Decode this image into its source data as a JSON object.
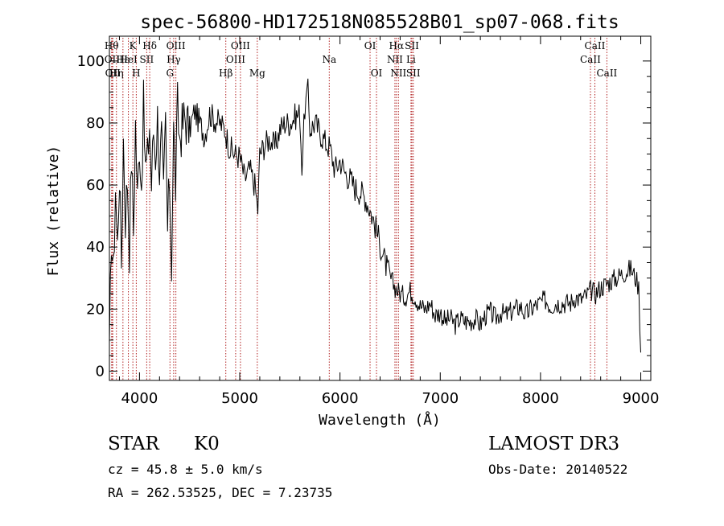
{
  "chart_data": {
    "type": "line",
    "title": "spec-56800-HD172518N085528B01_sp07-068.fits",
    "xlabel": "Wavelength (Å)",
    "ylabel": "Flux (relative)",
    "xlim": [
      3700,
      9100
    ],
    "ylim": [
      -3,
      108
    ],
    "xticks": [
      4000,
      5000,
      6000,
      7000,
      8000,
      9000
    ],
    "yticks": [
      0,
      20,
      40,
      60,
      80,
      100
    ],
    "grid": false,
    "line_color": "#000000",
    "marker_color": "#b22222",
    "series": [
      {
        "x": [
          3700,
          3720,
          3740,
          3760,
          3780,
          3800,
          3820,
          3840,
          3860,
          3880,
          3900,
          3920,
          3940,
          3960,
          3980,
          4000,
          4020,
          4040,
          4060,
          4080,
          4100,
          4120,
          4140,
          4160,
          4180,
          4200,
          4220,
          4240,
          4260,
          4280,
          4300,
          4320,
          4340,
          4360,
          4380,
          4400,
          4450,
          4500,
          4550,
          4600,
          4650,
          4700,
          4750,
          4800,
          4850,
          4900,
          4950,
          5000,
          5050,
          5100,
          5150,
          5180,
          5200,
          5250,
          5300,
          5350,
          5400,
          5450,
          5500,
          5550,
          5600,
          5620,
          5650,
          5680,
          5700,
          5750,
          5800,
          5850,
          5900,
          5950,
          6000,
          6050,
          6100,
          6150,
          6200,
          6250,
          6300,
          6350,
          6400,
          6450,
          6500,
          6550,
          6600,
          6650,
          6700,
          6750,
          6800,
          6850,
          6900,
          6950,
          7000,
          7050,
          7100,
          7150,
          7200,
          7250,
          7300,
          7350,
          7400,
          7450,
          7500,
          7550,
          7600,
          7650,
          7700,
          7750,
          7800,
          7850,
          7900,
          7950,
          8000,
          8050,
          8100,
          8150,
          8200,
          8250,
          8300,
          8350,
          8400,
          8450,
          8500,
          8550,
          8600,
          8650,
          8700,
          8750,
          8800,
          8850,
          8900,
          8950,
          8980,
          9000
        ],
        "y": [
          2,
          45,
          30,
          60,
          40,
          65,
          35,
          75,
          50,
          62,
          40,
          70,
          45,
          80,
          55,
          75,
          60,
          85,
          65,
          68,
          80,
          60,
          78,
          70,
          82,
          65,
          75,
          55,
          80,
          45,
          62,
          35,
          78,
          60,
          85,
          75,
          82,
          78,
          84,
          80,
          76,
          83,
          81,
          80,
          78,
          72,
          70,
          69,
          62,
          65,
          60,
          52,
          70,
          73,
          75,
          72,
          78,
          80,
          80,
          82,
          83,
          66,
          85,
          90,
          78,
          80,
          77,
          74,
          72,
          65,
          68,
          64,
          62,
          59,
          58,
          56,
          52,
          47,
          41,
          35,
          30,
          27,
          25,
          24,
          26,
          24,
          21,
          20,
          22,
          18,
          19,
          16,
          17,
          15,
          17,
          16,
          16,
          17,
          15,
          18,
          19,
          17,
          19,
          18,
          19,
          20,
          21,
          18,
          20,
          21,
          22,
          23,
          21,
          22,
          22,
          22,
          22,
          24,
          23,
          24,
          26,
          25,
          27,
          28,
          29,
          30,
          31,
          32,
          33,
          30,
          27,
          6
        ]
      }
    ],
    "line_markers": [
      {
        "w": 3722,
        "label": "Hθ",
        "row": 0,
        "marks": [
          3722
        ]
      },
      {
        "w": 3727,
        "label": "OII",
        "row": 1,
        "marks": [
          3727
        ]
      },
      {
        "w": 3734,
        "label": "OII",
        "row": 2,
        "marks": [
          3734
        ]
      },
      {
        "w": 3770,
        "label": "Hη",
        "row": 2,
        "marks": [
          3770
        ]
      },
      {
        "w": 3835,
        "label": "Hε",
        "row": 1,
        "marks": [
          3835
        ]
      },
      {
        "w": 3889,
        "label": "HeI",
        "row": 1,
        "marks": [
          3889
        ]
      },
      {
        "w": 3934,
        "label": "K",
        "row": 0,
        "marks": [
          3934
        ]
      },
      {
        "w": 3968,
        "label": "H",
        "row": 2,
        "marks": [
          3968
        ]
      },
      {
        "w": 4072,
        "label": "SII",
        "row": 1,
        "marks": [
          4072
        ]
      },
      {
        "w": 4102,
        "label": "Hδ",
        "row": 0,
        "marks": [
          4102
        ]
      },
      {
        "w": 4304,
        "label": "G",
        "row": 2,
        "marks": [
          4304
        ]
      },
      {
        "w": 4341,
        "label": "Hγ",
        "row": 1,
        "marks": [
          4341
        ]
      },
      {
        "w": 4363,
        "label": "OIII",
        "row": 0,
        "marks": [
          4363
        ]
      },
      {
        "w": 4861,
        "label": "Hβ",
        "row": 2,
        "marks": [
          4861
        ]
      },
      {
        "w": 4959,
        "label": "OIII",
        "row": 1,
        "marks": [
          4959
        ]
      },
      {
        "w": 5007,
        "label": "OIII",
        "row": 0,
        "marks": [
          5007
        ]
      },
      {
        "w": 5175,
        "label": "Mg",
        "row": 2,
        "marks": [
          5175
        ]
      },
      {
        "w": 5893,
        "label": "Na",
        "row": 1,
        "marks": [
          5893
        ]
      },
      {
        "w": 6300,
        "label": "OI",
        "row": 0,
        "marks": [
          6300
        ]
      },
      {
        "w": 6364,
        "label": "OI",
        "row": 2,
        "marks": [
          6364
        ]
      },
      {
        "w": 6548,
        "label": "NII",
        "row": 1,
        "marks": [
          6548
        ]
      },
      {
        "w": 6563,
        "label": "Hα",
        "row": 0,
        "marks": [
          6563
        ]
      },
      {
        "w": 6583,
        "label": "NII",
        "row": 2,
        "marks": [
          6583
        ]
      },
      {
        "w": 6708,
        "label": "Li",
        "row": 1,
        "marks": [
          6708
        ]
      },
      {
        "w": 6717,
        "label": "SII",
        "row": 0,
        "marks": [
          6717
        ]
      },
      {
        "w": 6731,
        "label": "SII",
        "row": 2,
        "marks": [
          6731
        ]
      },
      {
        "w": 8498,
        "label": "CaII",
        "row": 1,
        "marks": [
          8498
        ]
      },
      {
        "w": 8542,
        "label": "CaII",
        "row": 0,
        "marks": [
          8542
        ]
      },
      {
        "w": 8662,
        "label": "CaII",
        "row": 2,
        "marks": [
          8662
        ]
      }
    ]
  },
  "info": {
    "object_class": "STAR",
    "subclass": "K0",
    "survey": "LAMOST DR3",
    "redshift": "cz = 45.8 ± 5.0 km/s",
    "obs_date": "Obs-Date: 20140522",
    "coords": "RA = 262.53525, DEC =   7.23735"
  }
}
